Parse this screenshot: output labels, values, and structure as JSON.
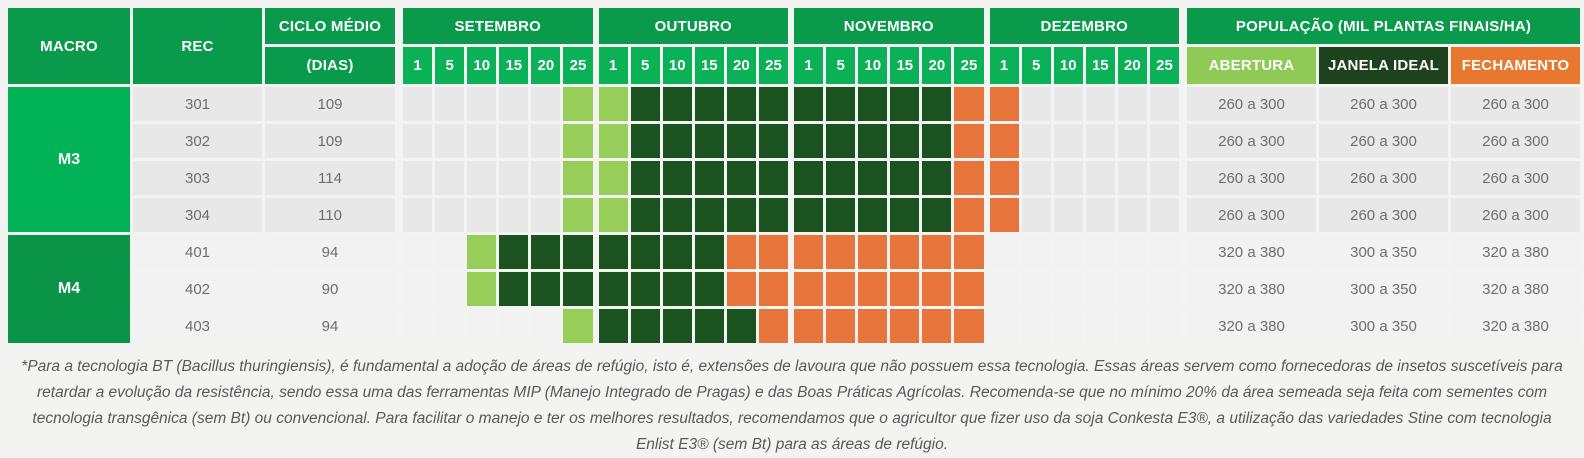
{
  "colors": {
    "band_green": "#0a9a4c",
    "bright_green": "#0bb156",
    "m3_green": "#02b257",
    "m4_green": "#0a9448",
    "abertura_header": "#8fc956",
    "janela_header": "#1d421d",
    "fechamento_header": "#e8782f",
    "abertura_cell": "#97ce5a",
    "janela_cell": "#1a5220",
    "fechamento_cell": "#e7743a",
    "m3_row_shade": "#e8e8e8",
    "m4_row_shade": "#f2f2f2"
  },
  "header": {
    "macro": "MACRO",
    "rec": "REC",
    "ciclo_line1": "CICLO MÉDIO",
    "ciclo_line2": "(DIAS)",
    "population": "POPULAÇÃO (MIL PLANTAS FINAIS/HA)",
    "abertura": "ABERTURA",
    "janela": "JANELA IDEAL",
    "fechamento": "FECHAMENTO"
  },
  "calendar": {
    "months": [
      {
        "label": "SETEMBRO",
        "days": [
          "1",
          "5",
          "10",
          "15",
          "20",
          "25"
        ]
      },
      {
        "label": "OUTUBRO",
        "days": [
          "1",
          "5",
          "10",
          "15",
          "20",
          "25"
        ]
      },
      {
        "label": "NOVEMBRO",
        "days": [
          "1",
          "5",
          "10",
          "15",
          "20",
          "25"
        ]
      },
      {
        "label": "DEZEMBRO",
        "days": [
          "1",
          "5",
          "10",
          "15",
          "20",
          "25"
        ]
      }
    ]
  },
  "groups": [
    {
      "macro": "M3",
      "macro_color": "#02b257",
      "shade": "#e8e8e8",
      "rows": [
        {
          "rec": "301",
          "ciclo": "109",
          "cells": "eeeeeaajjjjjjjjjjffeeeee",
          "population": [
            "260 a 300",
            "260 a 300",
            "260 a 300"
          ]
        },
        {
          "rec": "302",
          "ciclo": "109",
          "cells": "eeeeeaajjjjjjjjjjffeeeee",
          "population": [
            "260 a 300",
            "260 a 300",
            "260 a 300"
          ]
        },
        {
          "rec": "303",
          "ciclo": "114",
          "cells": "eeeeeaajjjjjjjjjjffeeeee",
          "population": [
            "260 a 300",
            "260 a 300",
            "260 a 300"
          ]
        },
        {
          "rec": "304",
          "ciclo": "110",
          "cells": "eeeeeaajjjjjjjjjjffeeeee",
          "population": [
            "260 a 300",
            "260 a 300",
            "260 a 300"
          ]
        }
      ]
    },
    {
      "macro": "M4",
      "macro_color": "#0a9448",
      "shade": "#f2f2f2",
      "rows": [
        {
          "rec": "401",
          "ciclo": "94",
          "cells": "eeajjjjjjjffffffffeeeeee",
          "population": [
            "320 a 380",
            "300 a 350",
            "320 a 380"
          ]
        },
        {
          "rec": "402",
          "ciclo": "90",
          "cells": "eeajjjjjjjffffffffeeeeee",
          "population": [
            "320 a 380",
            "300 a 350",
            "320 a 380"
          ]
        },
        {
          "rec": "403",
          "ciclo": "94",
          "cells": "eeeeeajjjjjfffffffeeeeee",
          "population": [
            "320 a 380",
            "300 a 350",
            "320 a 380"
          ]
        }
      ]
    }
  ],
  "footnote": "*Para a tecnologia BT (Bacillus thuringiensis), é fundamental a adoção de áreas de refúgio, isto é, extensões de lavoura que não possuem essa tecnologia. Essas áreas servem como fornecedoras de insetos suscetíveis para retardar a evolução da resistência, sendo essa uma das ferramentas MIP (Manejo Integrado de Pragas) e das Boas Práticas Agrícolas. Recomenda-se que no mínimo 20% da área semeada seja feita com sementes com tecnologia transgênica (sem Bt) ou convencional. Para facilitar o manejo e ter os melhores resultados, recomendamos que o agricultor que fizer uso da soja Conkesta E3®, a utilização das variedades Stine com tecnologia Enlist E3® (sem Bt) para as áreas de refúgio.",
  "chart_data": {
    "type": "heatmap",
    "title": "Janela de plantio por REC (calendário Setembro–Dezembro)",
    "x_ticks_months": [
      "SETEMBRO",
      "OUTUBRO",
      "NOVEMBRO",
      "DEZEMBRO"
    ],
    "x_ticks_days": [
      1,
      5,
      10,
      15,
      20,
      25
    ],
    "legend": [
      {
        "label": "ABERTURA",
        "color": "#97ce5a"
      },
      {
        "label": "JANELA IDEAL",
        "color": "#1a5220"
      },
      {
        "label": "FECHAMENTO",
        "color": "#e7743a"
      }
    ],
    "rows": [
      {
        "macro": "M3",
        "rec": 301,
        "ciclo_dias": 109,
        "abertura": "25/09–01/10",
        "janela_ideal": "05/10–20/11",
        "fechamento": "25/11–01/12",
        "pop_abertura": "260 a 300",
        "pop_janela": "260 a 300",
        "pop_fechamento": "260 a 300"
      },
      {
        "macro": "M3",
        "rec": 302,
        "ciclo_dias": 109,
        "abertura": "25/09–01/10",
        "janela_ideal": "05/10–20/11",
        "fechamento": "25/11–01/12",
        "pop_abertura": "260 a 300",
        "pop_janela": "260 a 300",
        "pop_fechamento": "260 a 300"
      },
      {
        "macro": "M3",
        "rec": 303,
        "ciclo_dias": 114,
        "abertura": "25/09–01/10",
        "janela_ideal": "05/10–20/11",
        "fechamento": "25/11–01/12",
        "pop_abertura": "260 a 300",
        "pop_janela": "260 a 300",
        "pop_fechamento": "260 a 300"
      },
      {
        "macro": "M3",
        "rec": 304,
        "ciclo_dias": 110,
        "abertura": "25/09–01/10",
        "janela_ideal": "05/10–20/11",
        "fechamento": "25/11–01/12",
        "pop_abertura": "260 a 300",
        "pop_janela": "260 a 300",
        "pop_fechamento": "260 a 300"
      },
      {
        "macro": "M4",
        "rec": 401,
        "ciclo_dias": 94,
        "abertura": "10/09",
        "janela_ideal": "15/09–15/10",
        "fechamento": "20/10–25/11",
        "pop_abertura": "320 a 380",
        "pop_janela": "300 a 350",
        "pop_fechamento": "320 a 380"
      },
      {
        "macro": "M4",
        "rec": 402,
        "ciclo_dias": 90,
        "abertura": "10/09",
        "janela_ideal": "15/09–15/10",
        "fechamento": "20/10–25/11",
        "pop_abertura": "320 a 380",
        "pop_janela": "300 a 350",
        "pop_fechamento": "320 a 380"
      },
      {
        "macro": "M4",
        "rec": 403,
        "ciclo_dias": 94,
        "abertura": "25/09",
        "janela_ideal": "01/10–20/10",
        "fechamento": "25/10–25/11",
        "pop_abertura": "320 a 380",
        "pop_janela": "300 a 350",
        "pop_fechamento": "320 a 380"
      }
    ]
  }
}
